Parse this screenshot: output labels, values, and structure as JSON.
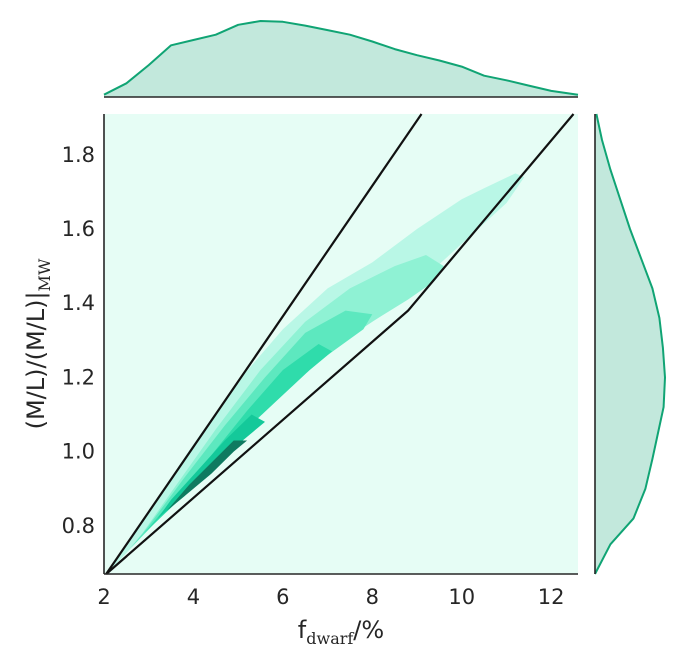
{
  "chart_data": {
    "type": "kde-joint",
    "xlabel_main": "f",
    "xlabel_sub": "dwarf",
    "xlabel_tail": "/%",
    "ylabel_main": "(M/L)/(M/L)|",
    "ylabel_sub": "MW",
    "xlim": [
      2.0,
      12.6
    ],
    "ylim": [
      0.67,
      1.91
    ],
    "xticks": [
      "2",
      "4",
      "6",
      "8",
      "10",
      "12"
    ],
    "yticks": [
      "0.8",
      "1.0",
      "1.2",
      "1.4",
      "1.6",
      "1.8"
    ],
    "xtick_values": [
      2,
      4,
      6,
      8,
      10,
      12
    ],
    "ytick_values": [
      0.8,
      1.0,
      1.2,
      1.4,
      1.6,
      1.8
    ],
    "boundary_lines": [
      {
        "name": "",
        "points": [
          [
            2.05,
            0.67
          ],
          [
            9.1,
            1.91
          ]
        ]
      },
      {
        "name": "",
        "points": [
          [
            2.05,
            0.67
          ],
          [
            8.8,
            1.38
          ],
          [
            12.5,
            1.91
          ]
        ]
      }
    ],
    "kde_levels": [
      {
        "level": 1,
        "color": "#b9f7e6",
        "points": [
          [
            2.05,
            0.67
          ],
          [
            3.0,
            0.79
          ],
          [
            4.0,
            0.93
          ],
          [
            5.0,
            1.06
          ],
          [
            6.0,
            1.17
          ],
          [
            7.0,
            1.27
          ],
          [
            8.0,
            1.35
          ],
          [
            9.0,
            1.45
          ],
          [
            10.0,
            1.56
          ],
          [
            11.0,
            1.67
          ],
          [
            11.4,
            1.74
          ],
          [
            11.2,
            1.75
          ],
          [
            10.5,
            1.71
          ],
          [
            10.0,
            1.68
          ],
          [
            9.0,
            1.6
          ],
          [
            8.0,
            1.51
          ],
          [
            7.0,
            1.44
          ],
          [
            6.0,
            1.33
          ],
          [
            5.0,
            1.19
          ],
          [
            4.0,
            1.02
          ],
          [
            3.0,
            0.84
          ]
        ]
      },
      {
        "level": 2,
        "color": "#8ff2d4",
        "points": [
          [
            2.3,
            0.7
          ],
          [
            3.0,
            0.8
          ],
          [
            4.0,
            0.93
          ],
          [
            5.0,
            1.06
          ],
          [
            6.0,
            1.17
          ],
          [
            7.0,
            1.27
          ],
          [
            8.0,
            1.35
          ],
          [
            8.8,
            1.41
          ],
          [
            9.4,
            1.46
          ],
          [
            9.6,
            1.5
          ],
          [
            9.2,
            1.53
          ],
          [
            8.5,
            1.5
          ],
          [
            7.5,
            1.44
          ],
          [
            6.5,
            1.35
          ],
          [
            5.5,
            1.22
          ],
          [
            4.5,
            1.06
          ],
          [
            3.5,
            0.89
          ],
          [
            2.8,
            0.77
          ]
        ]
      },
      {
        "level": 3,
        "color": "#5de8bf",
        "points": [
          [
            2.6,
            0.74
          ],
          [
            3.4,
            0.84
          ],
          [
            4.2,
            0.94
          ],
          [
            5.0,
            1.05
          ],
          [
            6.0,
            1.16
          ],
          [
            7.0,
            1.26
          ],
          [
            7.8,
            1.33
          ],
          [
            8.0,
            1.37
          ],
          [
            7.4,
            1.38
          ],
          [
            6.5,
            1.32
          ],
          [
            5.6,
            1.2
          ],
          [
            4.7,
            1.07
          ],
          [
            3.8,
            0.93
          ],
          [
            3.0,
            0.8
          ]
        ]
      },
      {
        "level": 4,
        "color": "#2fdcab",
        "points": [
          [
            2.9,
            0.78
          ],
          [
            3.6,
            0.86
          ],
          [
            4.3,
            0.95
          ],
          [
            5.0,
            1.04
          ],
          [
            5.8,
            1.13
          ],
          [
            6.6,
            1.22
          ],
          [
            7.1,
            1.27
          ],
          [
            6.8,
            1.29
          ],
          [
            6.0,
            1.22
          ],
          [
            5.2,
            1.11
          ],
          [
            4.4,
            0.99
          ],
          [
            3.6,
            0.88
          ]
        ]
      },
      {
        "level": 5,
        "color": "#14c99a",
        "points": [
          [
            3.2,
            0.82
          ],
          [
            3.8,
            0.88
          ],
          [
            4.4,
            0.95
          ],
          [
            5.0,
            1.02
          ],
          [
            5.6,
            1.08
          ],
          [
            5.3,
            1.1
          ],
          [
            4.7,
            1.03
          ],
          [
            4.1,
            0.95
          ],
          [
            3.5,
            0.87
          ]
        ]
      },
      {
        "level": 6,
        "color": "#0f7a60",
        "points": [
          [
            3.4,
            0.84
          ],
          [
            3.9,
            0.89
          ],
          [
            4.4,
            0.94
          ],
          [
            4.9,
            1.0
          ],
          [
            5.2,
            1.03
          ],
          [
            4.9,
            1.03
          ],
          [
            4.4,
            0.97
          ],
          [
            3.9,
            0.91
          ]
        ]
      }
    ],
    "x_marginal": {
      "x": [
        2.0,
        2.5,
        3.0,
        3.5,
        4.0,
        4.5,
        5.0,
        5.5,
        6.0,
        6.5,
        7.0,
        7.5,
        8.0,
        8.5,
        9.0,
        9.5,
        10.0,
        10.5,
        11.0,
        11.5,
        12.0,
        12.6
      ],
      "density": [
        0.03,
        0.18,
        0.42,
        0.68,
        0.75,
        0.82,
        0.95,
        1.0,
        0.99,
        0.94,
        0.88,
        0.82,
        0.73,
        0.63,
        0.55,
        0.48,
        0.4,
        0.28,
        0.22,
        0.15,
        0.08,
        0.03
      ]
    },
    "y_marginal": {
      "y": [
        0.67,
        0.75,
        0.82,
        0.9,
        0.98,
        1.05,
        1.12,
        1.2,
        1.28,
        1.36,
        1.44,
        1.52,
        1.6,
        1.68,
        1.76,
        1.84,
        1.91
      ],
      "density": [
        0.0,
        0.22,
        0.55,
        0.72,
        0.82,
        0.9,
        0.98,
        1.0,
        0.97,
        0.92,
        0.82,
        0.66,
        0.5,
        0.36,
        0.22,
        0.1,
        0.02
      ]
    },
    "colors": {
      "plot_bg": "#e6fdf5",
      "marginal_fill": "#c2e8dc",
      "marginal_line": "#10a474",
      "boundary_line": "#111111",
      "axis": "#262626"
    },
    "grid": false,
    "legend": "none"
  }
}
